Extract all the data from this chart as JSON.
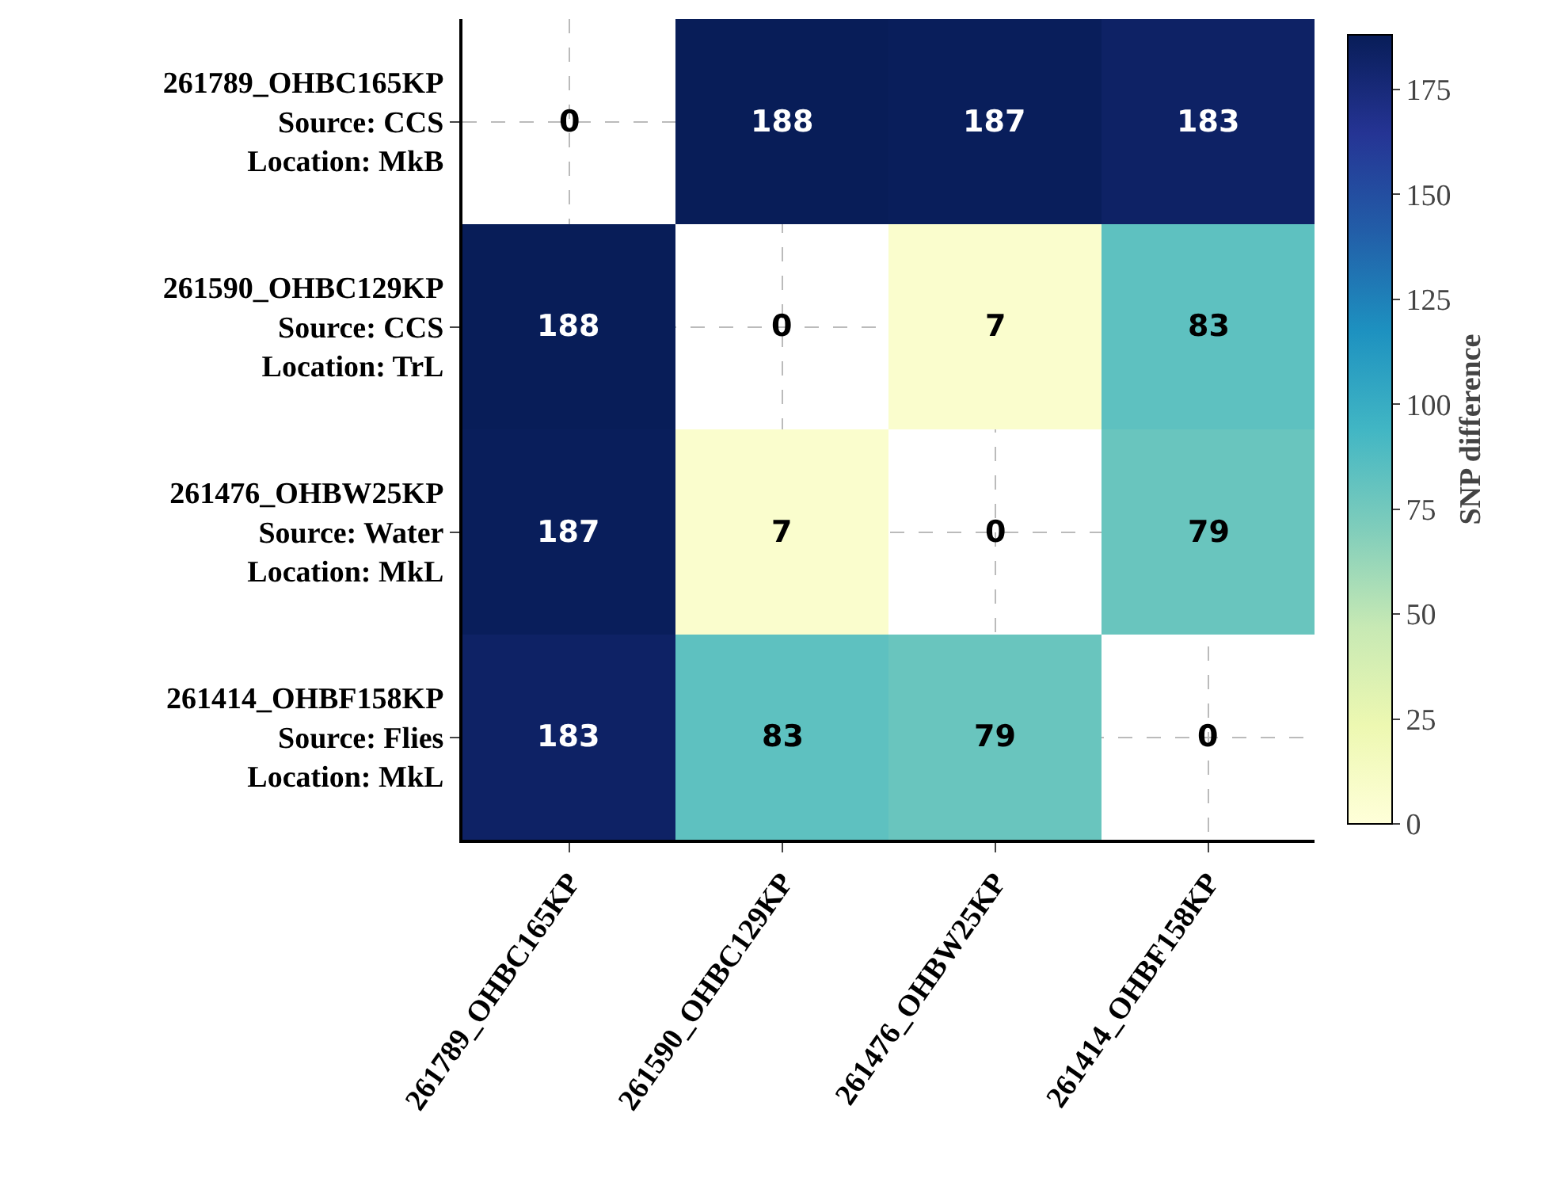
{
  "chart_data": {
    "type": "heatmap",
    "categories": [
      "261789_OHBC165KP",
      "261590_OHBC129KP",
      "261476_OHBW25KP",
      "261414_OHBF158KP"
    ],
    "y_categories": [
      "261789_OHBC165KP\nSource: CCS\nLocation: MkB",
      "261590_OHBC129KP\nSource: CCS\nLocation: TrL",
      "261476_OHBW25KP\nSource: Water\nLocation: MkL",
      "261414_OHBF158KP\nSource: Flies\nLocation: MkL"
    ],
    "cells": [
      [
        null,
        188,
        187,
        183
      ],
      [
        188,
        null,
        7,
        83
      ],
      [
        187,
        7,
        null,
        79
      ],
      [
        183,
        83,
        79,
        null
      ]
    ],
    "cell_labels": [
      [
        "0",
        "188",
        "187",
        "183"
      ],
      [
        "188",
        "0",
        "7",
        "83"
      ],
      [
        "187",
        "7",
        "0",
        "79"
      ],
      [
        "183",
        "83",
        "79",
        "0"
      ]
    ],
    "clabel": "SNP difference",
    "clim": [
      0,
      188
    ],
    "cticks": [
      0,
      25,
      50,
      75,
      100,
      125,
      150,
      175
    ],
    "grid": true
  }
}
